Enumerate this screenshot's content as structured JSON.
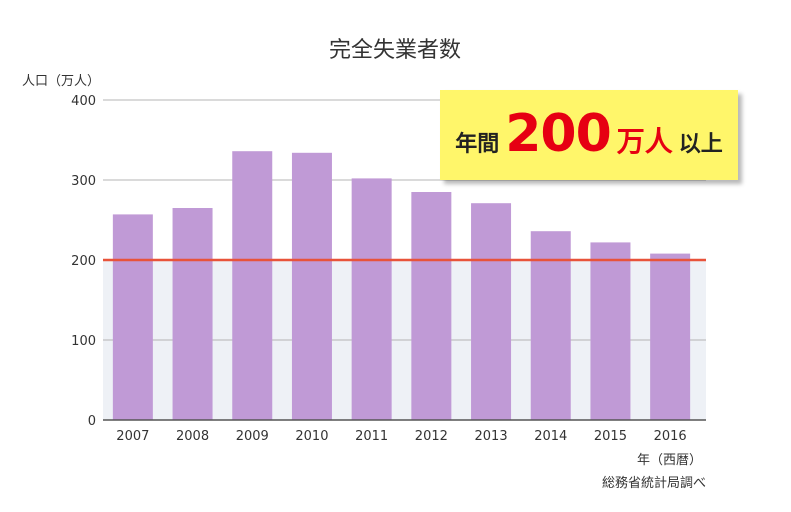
{
  "chart_data": {
    "type": "bar",
    "title": "完全失業者数",
    "ylabel": "人口（万人）",
    "xlabel": "年（西暦）",
    "source": "総務省統計局調べ",
    "categories": [
      "2007",
      "2008",
      "2009",
      "2010",
      "2011",
      "2012",
      "2013",
      "2014",
      "2015",
      "2016"
    ],
    "values": [
      257,
      265,
      336,
      334,
      302,
      285,
      271,
      236,
      222,
      208
    ],
    "ylim": [
      0,
      400
    ],
    "yticks": [
      0,
      100,
      200,
      300,
      400
    ],
    "grid": true,
    "bar_color": "#c09ad6",
    "threshold": {
      "value": 200,
      "color": "#e8533a",
      "band_color": "#eef1f6"
    },
    "callout": {
      "prefix": "年間",
      "number": "200",
      "unit": "万人",
      "suffix": "以上"
    }
  }
}
